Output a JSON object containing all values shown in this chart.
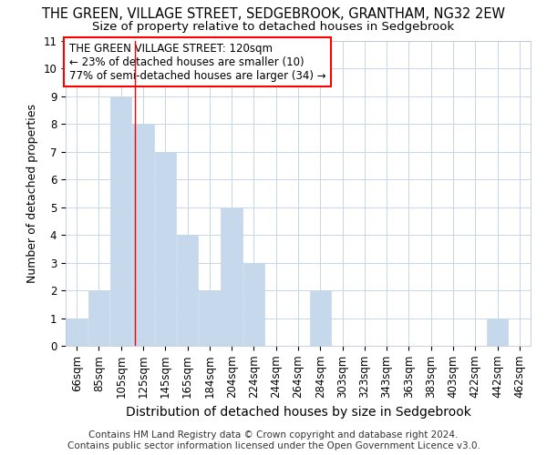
{
  "title": "THE GREEN, VILLAGE STREET, SEDGEBROOK, GRANTHAM, NG32 2EW",
  "subtitle": "Size of property relative to detached houses in Sedgebrook",
  "xlabel": "Distribution of detached houses by size in Sedgebrook",
  "ylabel": "Number of detached properties",
  "categories": [
    "66sqm",
    "85sqm",
    "105sqm",
    "125sqm",
    "145sqm",
    "165sqm",
    "184sqm",
    "204sqm",
    "224sqm",
    "244sqm",
    "264sqm",
    "284sqm",
    "303sqm",
    "323sqm",
    "343sqm",
    "363sqm",
    "383sqm",
    "403sqm",
    "422sqm",
    "442sqm",
    "462sqm"
  ],
  "values": [
    1,
    2,
    9,
    8,
    7,
    4,
    2,
    5,
    3,
    0,
    0,
    2,
    0,
    0,
    0,
    0,
    0,
    0,
    0,
    1,
    0
  ],
  "bar_color": "#c5d8ec",
  "bar_edge_color": "#c5d8ec",
  "grid_color": "#c8d4e8",
  "background_color": "#ffffff",
  "red_line_x": 2.62,
  "annotation_text": "THE GREEN VILLAGE STREET: 120sqm\n← 23% of detached houses are smaller (10)\n77% of semi-detached houses are larger (34) →",
  "annotation_box_color": "white",
  "annotation_box_edge": "red",
  "ylim": [
    0,
    11
  ],
  "yticks": [
    0,
    1,
    2,
    3,
    4,
    5,
    6,
    7,
    8,
    9,
    10,
    11
  ],
  "footer": "Contains HM Land Registry data © Crown copyright and database right 2024.\nContains public sector information licensed under the Open Government Licence v3.0.",
  "title_fontsize": 10.5,
  "subtitle_fontsize": 9.5,
  "xlabel_fontsize": 10,
  "ylabel_fontsize": 9,
  "tick_fontsize": 8.5,
  "annotation_fontsize": 8.5,
  "footer_fontsize": 7.5
}
